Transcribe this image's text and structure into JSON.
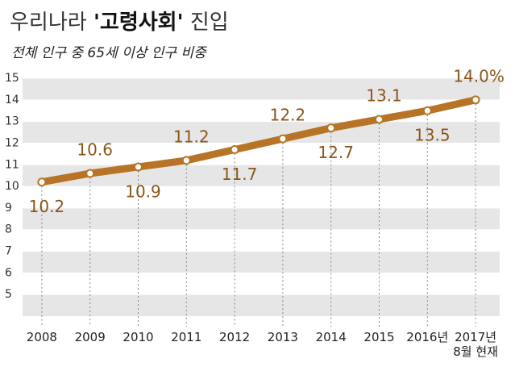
{
  "chart_data": {
    "type": "line",
    "title": [
      "우리나라",
      "'고령사회'",
      "진입"
    ],
    "subtitle": "전체 인구 중 65세 이상 인구 비중",
    "categories": [
      "2008",
      "2009",
      "2010",
      "2011",
      "2012",
      "2013",
      "2014",
      "2015",
      "2016년",
      "2017년 8월 현재"
    ],
    "values": [
      10.2,
      10.6,
      10.9,
      11.2,
      11.7,
      12.2,
      12.7,
      13.1,
      13.5,
      14.0
    ],
    "value_labels": [
      "10.2",
      "10.6",
      "10.9",
      "11.2",
      "11.7",
      "12.2",
      "12.7",
      "13.1",
      "13.5",
      "14.0%"
    ],
    "color": "#b87426",
    "ylim": [
      4,
      15
    ],
    "yticks": [
      5,
      6,
      7,
      8,
      9,
      10,
      11,
      12,
      13,
      14,
      15
    ],
    "grid": true
  }
}
